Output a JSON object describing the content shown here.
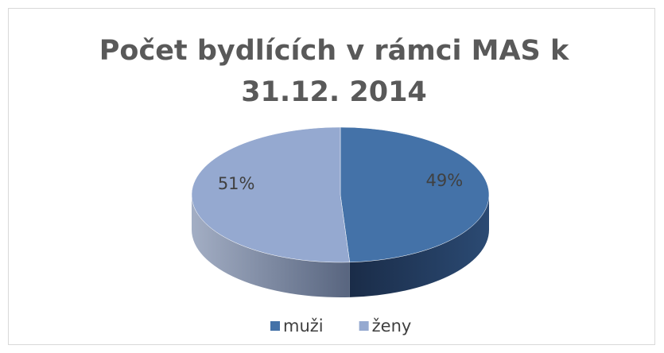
{
  "chart_data": {
    "type": "pie",
    "title": "Počet bydlících v rámci MAS k 31.12. 2014",
    "categories": [
      "muži",
      "ženy"
    ],
    "values": [
      49,
      51
    ],
    "value_labels": [
      "49%",
      "51%"
    ],
    "colors": [
      "#4472a8",
      "#95a9d0"
    ],
    "legend": "bottom"
  }
}
